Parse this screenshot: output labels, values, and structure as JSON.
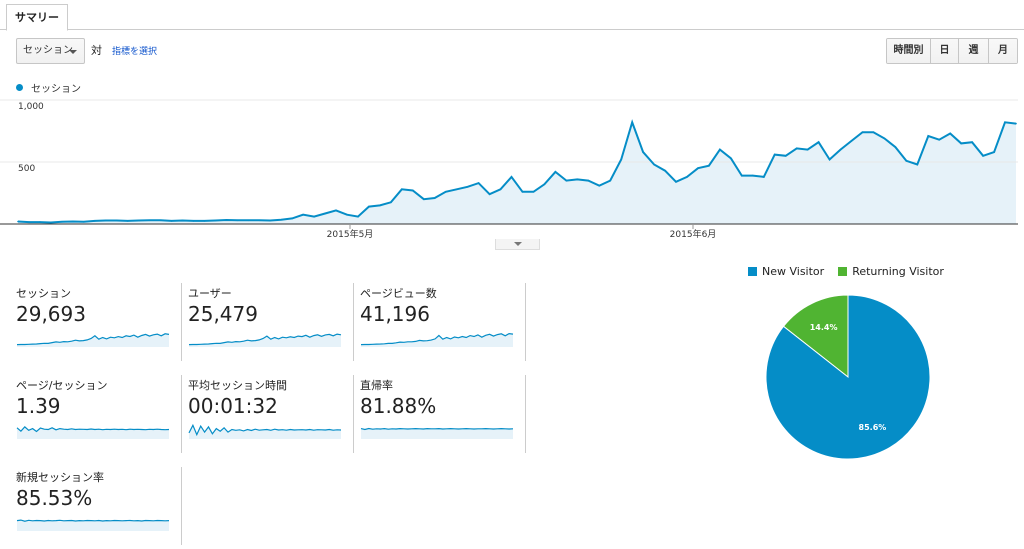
{
  "tabs": [
    {
      "label": "サマリー"
    }
  ],
  "toolbar": {
    "metric_select": "セッション",
    "vs_label": "対",
    "select_metric_link": "指標を選択",
    "periods": [
      {
        "label": "時間別",
        "active": false
      },
      {
        "label": "日",
        "active": true
      },
      {
        "label": "週",
        "active": false
      },
      {
        "label": "月",
        "active": false
      }
    ]
  },
  "chart_data": [
    {
      "type": "area",
      "series": [
        {
          "name": "セッション",
          "color": "#058dc7",
          "values": [
            20,
            15,
            15,
            12,
            18,
            20,
            18,
            25,
            28,
            28,
            25,
            28,
            30,
            30,
            25,
            28,
            25,
            25,
            28,
            32,
            30,
            30,
            30,
            28,
            35,
            45,
            75,
            60,
            85,
            110,
            75,
            60,
            140,
            150,
            175,
            280,
            270,
            200,
            210,
            260,
            280,
            300,
            330,
            240,
            280,
            380,
            260,
            260,
            320,
            420,
            350,
            360,
            350,
            310,
            350,
            520,
            820,
            580,
            480,
            430,
            340,
            380,
            450,
            470,
            600,
            530,
            390,
            390,
            380,
            560,
            550,
            610,
            600,
            660,
            520,
            600,
            670,
            740,
            740,
            690,
            620,
            510,
            480,
            710,
            680,
            730,
            650,
            660,
            550,
            580,
            820,
            810
          ]
        }
      ],
      "x_tick_labels": [
        "2015年5月",
        "2015年6月"
      ],
      "y_tick_labels": [
        "1,000",
        "500"
      ],
      "ylim": [
        0,
        1000
      ],
      "grid": true
    },
    {
      "type": "pie",
      "title": "",
      "slices": [
        {
          "label": "New Visitor",
          "value": 85.6,
          "display": "85.6%",
          "color": "#058dc7"
        },
        {
          "label": "Returning Visitor",
          "value": 14.4,
          "display": "14.4%",
          "color": "#50b432"
        }
      ]
    }
  ],
  "metrics": [
    {
      "name": "セッション",
      "value": "29,693",
      "spark": [
        8,
        9,
        9,
        10,
        11,
        12,
        14,
        16,
        15,
        20,
        24,
        22,
        26,
        25,
        28,
        34,
        30,
        32,
        36,
        44,
        60,
        40,
        50,
        42,
        52,
        48,
        55,
        50,
        60,
        56,
        64,
        52,
        62,
        68,
        58,
        66,
        70,
        60,
        72,
        68
      ]
    },
    {
      "name": "ユーザー",
      "value": "25,479",
      "spark": [
        8,
        9,
        9,
        10,
        11,
        12,
        14,
        16,
        15,
        20,
        24,
        22,
        26,
        25,
        28,
        34,
        30,
        32,
        36,
        44,
        58,
        40,
        50,
        42,
        52,
        48,
        54,
        50,
        58,
        55,
        63,
        52,
        61,
        66,
        57,
        65,
        68,
        60,
        70,
        66
      ]
    },
    {
      "name": "ページビュー数",
      "value": "41,196",
      "spark": [
        8,
        9,
        9,
        10,
        11,
        12,
        13,
        15,
        15,
        19,
        23,
        22,
        25,
        25,
        27,
        33,
        30,
        31,
        35,
        42,
        62,
        40,
        50,
        42,
        53,
        48,
        56,
        50,
        61,
        56,
        65,
        52,
        63,
        69,
        58,
        67,
        72,
        60,
        73,
        70
      ]
    },
    {
      "name": "ページ/セッション",
      "value": "1.39",
      "spark": [
        60,
        40,
        65,
        45,
        55,
        38,
        58,
        52,
        50,
        60,
        48,
        55,
        52,
        50,
        54,
        50,
        52,
        51,
        50,
        53,
        50,
        52,
        49,
        51,
        50,
        52,
        50,
        51,
        49,
        52,
        50,
        51,
        50,
        49,
        51,
        50,
        52,
        50,
        49,
        50
      ]
    },
    {
      "name": "平均セッション時間",
      "value": "00:01:32",
      "spark": [
        30,
        75,
        20,
        70,
        35,
        65,
        25,
        55,
        40,
        60,
        35,
        50,
        45,
        48,
        42,
        50,
        44,
        52,
        46,
        48,
        50,
        45,
        52,
        47,
        49,
        46,
        50,
        47,
        48,
        49,
        47,
        50,
        46,
        49,
        48,
        47,
        50,
        46,
        48,
        47
      ]
    },
    {
      "name": "直帰率",
      "value": "81.88%",
      "spark": [
        55,
        50,
        56,
        52,
        54,
        53,
        55,
        52,
        54,
        53,
        55,
        54,
        53,
        54,
        55,
        54,
        53,
        55,
        54,
        54,
        55,
        53,
        54,
        55,
        54,
        53,
        54,
        55,
        54,
        53,
        54,
        54,
        55,
        54,
        53,
        54,
        55,
        54,
        53,
        54
      ]
    },
    {
      "name": "新規セッション率",
      "value": "85.53%",
      "spark": [
        55,
        58,
        52,
        57,
        54,
        56,
        55,
        53,
        56,
        54,
        55,
        57,
        54,
        55,
        56,
        53,
        55,
        54,
        56,
        55,
        54,
        56,
        53,
        55,
        54,
        56,
        55,
        54,
        55,
        56,
        54,
        55,
        53,
        56,
        55,
        54,
        56,
        55,
        54,
        55
      ]
    }
  ]
}
